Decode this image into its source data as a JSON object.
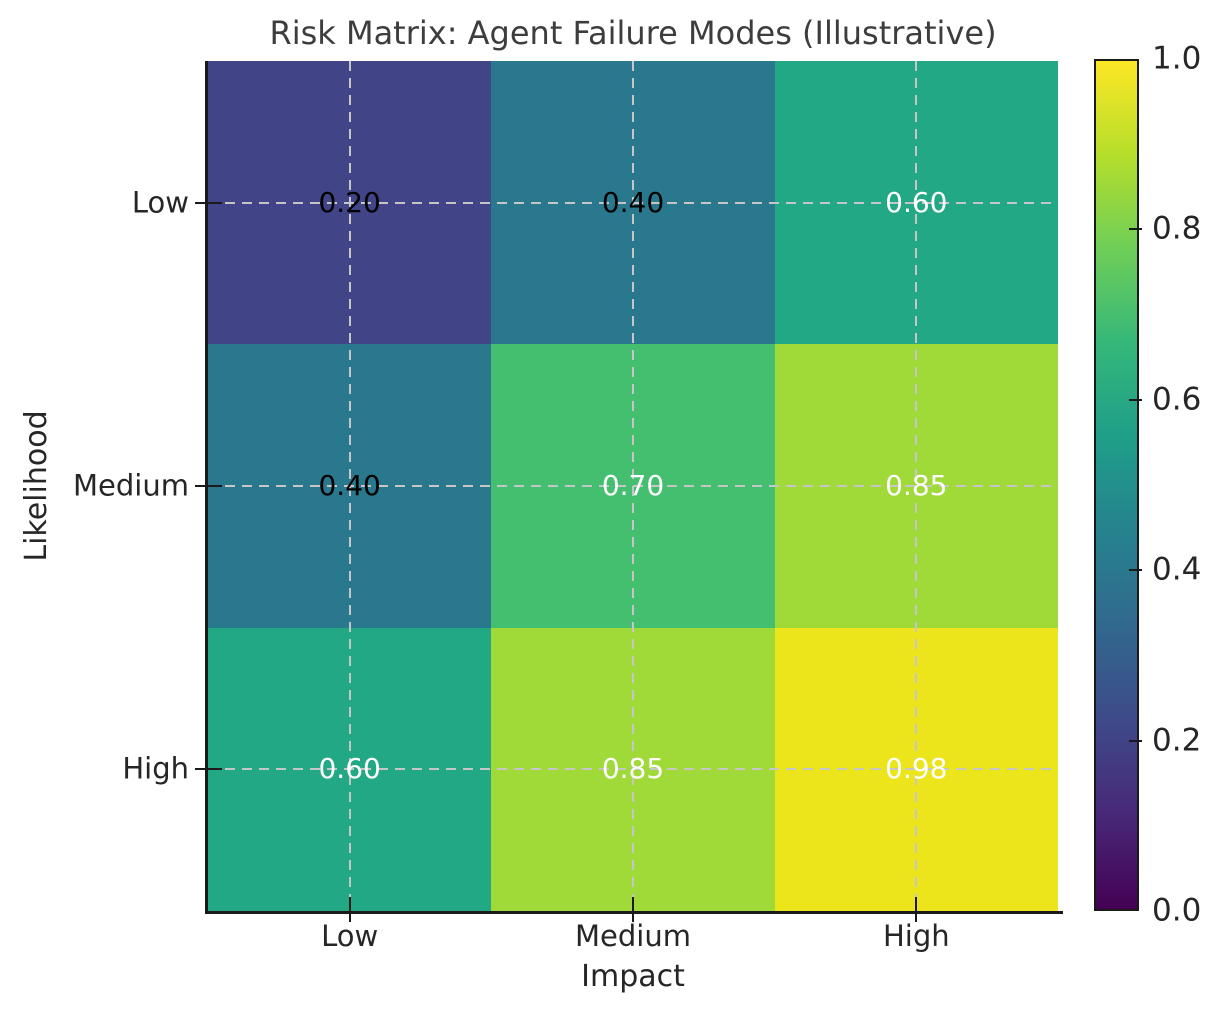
{
  "chart_data": {
    "type": "heatmap",
    "title": "Risk Matrix: Agent Failure Modes (Illustrative)",
    "xlabel": "Impact",
    "ylabel": "Likelihood",
    "x_categories": [
      "Low",
      "Medium",
      "High"
    ],
    "y_categories": [
      "Low",
      "Medium",
      "High"
    ],
    "values": [
      [
        0.2,
        0.4,
        0.6
      ],
      [
        0.4,
        0.7,
        0.85
      ],
      [
        0.6,
        0.85,
        0.98
      ]
    ],
    "cell_labels": [
      [
        "0.20",
        "0.40",
        "0.60"
      ],
      [
        "0.40",
        "0.70",
        "0.85"
      ],
      [
        "0.60",
        "0.85",
        "0.98"
      ]
    ],
    "cell_colors": [
      [
        "#414487",
        "#2a788e",
        "#22a884"
      ],
      [
        "#2a788e",
        "#44bf70",
        "#a0da39"
      ],
      [
        "#22a884",
        "#a0da39",
        "#ece51b"
      ]
    ],
    "cell_text_colors": [
      [
        "#000000",
        "#000000",
        "#ffffff"
      ],
      [
        "#000000",
        "#ffffff",
        "#ffffff"
      ],
      [
        "#ffffff",
        "#ffffff",
        "#ffffff"
      ]
    ],
    "colormap": "viridis",
    "colorbar": {
      "min": 0.0,
      "max": 1.0,
      "tick_labels": [
        "0.0",
        "0.2",
        "0.4",
        "0.6",
        "0.8",
        "1.0"
      ],
      "gradient_stops": [
        "#440154",
        "#482878",
        "#3e4a89",
        "#31688e",
        "#26828e",
        "#1f9e89",
        "#35b779",
        "#6ece58",
        "#b5de2b",
        "#fde725"
      ]
    },
    "grid": {
      "style": "dashed",
      "color": "#c6c6c6",
      "position": "cell-centers"
    },
    "colors": {
      "axis": "#1a1a1a",
      "text": "#262626",
      "title": "#3d3d3d",
      "background": "#ffffff"
    },
    "legend_position": "colorbar-right"
  }
}
